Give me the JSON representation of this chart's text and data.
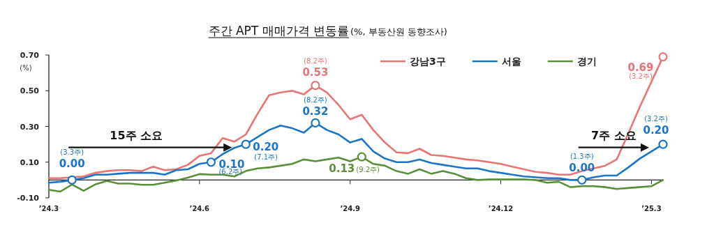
{
  "chart_data": {
    "type": "line",
    "title": "주간 APT 매매가격 변동률",
    "subtitle": "(%, 부동산원 동향조사)",
    "ylabel": "(%)",
    "categories": [
      "’24.3",
      null,
      null,
      null,
      null,
      null,
      null,
      null,
      null,
      null,
      null,
      null,
      null,
      "’24.6",
      null,
      null,
      null,
      null,
      null,
      null,
      null,
      null,
      null,
      null,
      null,
      null,
      "’24.9",
      null,
      null,
      null,
      null,
      null,
      null,
      null,
      null,
      null,
      null,
      null,
      null,
      "’24.12",
      null,
      null,
      null,
      null,
      null,
      null,
      null,
      null,
      null,
      null,
      null,
      null,
      "’25.3",
      null
    ],
    "ylim": [
      -0.1,
      0.7
    ],
    "yticks": [
      {
        "value": 0.7,
        "label": "0.70"
      },
      {
        "value": 0.5,
        "label": "0.50"
      },
      {
        "value": 0.3,
        "label": "0.30"
      },
      {
        "value": 0.1,
        "label": "0.10"
      },
      {
        "value": -0.1,
        "label": "-0.10"
      }
    ],
    "grid": false,
    "legend": "top right",
    "series": [
      {
        "name": "강남3구",
        "color": "#e87474",
        "values": [
          0.01,
          0.01,
          null,
          0.02,
          0.04,
          0.05,
          0.055,
          0.055,
          0.05,
          0.075,
          0.055,
          0.06,
          0.085,
          0.135,
          0.15,
          0.235,
          0.215,
          0.255,
          0.37,
          0.475,
          0.49,
          0.5,
          0.48,
          0.53,
          0.49,
          0.42,
          0.34,
          0.365,
          0.28,
          0.21,
          0.155,
          0.15,
          0.175,
          0.14,
          0.135,
          0.125,
          0.115,
          0.11,
          0.1,
          0.09,
          0.075,
          0.06,
          0.045,
          0.04,
          0.03,
          0.03,
          0.05,
          0.065,
          0.08,
          0.115,
          0.26,
          0.41,
          0.55,
          0.69
        ],
        "value_labels": [
          null,
          null,
          null,
          null,
          null,
          null,
          null,
          null,
          null,
          null,
          null,
          null,
          null,
          null,
          null,
          null,
          null,
          null,
          null,
          null,
          null,
          null,
          null,
          "0.53",
          null,
          null,
          null,
          null,
          null,
          null,
          null,
          null,
          null,
          null,
          null,
          null,
          null,
          null,
          null,
          null,
          null,
          null,
          null,
          null,
          null,
          null,
          null,
          null,
          null,
          null,
          null,
          null,
          null,
          "0.69"
        ]
      },
      {
        "name": "서울",
        "color": "#1a75c9",
        "values": [
          -0.015,
          -0.01,
          0.0,
          0.01,
          0.03,
          0.03,
          0.035,
          0.04,
          0.04,
          0.04,
          0.03,
          0.055,
          0.06,
          0.09,
          0.1,
          0.145,
          0.18,
          0.2,
          0.24,
          0.28,
          0.305,
          0.29,
          0.265,
          0.32,
          0.28,
          0.255,
          0.21,
          0.23,
          0.16,
          0.12,
          0.1,
          0.1,
          0.115,
          0.095,
          0.085,
          0.075,
          0.065,
          0.065,
          0.05,
          0.04,
          0.03,
          0.02,
          0.015,
          0.01,
          0.01,
          0.0,
          0.0,
          0.015,
          0.025,
          0.025,
          0.07,
          0.12,
          0.16,
          0.2
        ],
        "value_labels": [
          null,
          null,
          "0.00",
          null,
          null,
          null,
          null,
          null,
          null,
          null,
          null,
          null,
          null,
          null,
          "0.10",
          null,
          null,
          "0.20",
          null,
          null,
          null,
          null,
          null,
          "0.32",
          null,
          null,
          null,
          null,
          null,
          null,
          null,
          null,
          null,
          null,
          null,
          null,
          null,
          null,
          null,
          null,
          null,
          null,
          null,
          null,
          null,
          null,
          "0.00",
          null,
          null,
          null,
          null,
          null,
          null,
          "0.20"
        ]
      },
      {
        "name": "경기",
        "color": "#5b8e3a",
        "values": [
          -0.055,
          -0.065,
          -0.025,
          -0.06,
          -0.025,
          -0.005,
          -0.02,
          -0.02,
          -0.027,
          -0.027,
          -0.015,
          -0.003,
          0.013,
          0.033,
          0.03,
          0.03,
          0.02,
          0.05,
          0.065,
          0.07,
          0.08,
          0.09,
          0.115,
          0.105,
          0.115,
          0.125,
          0.105,
          0.13,
          0.09,
          0.08,
          0.05,
          0.035,
          0.06,
          0.035,
          0.05,
          0.035,
          0.01,
          0.0,
          0.003,
          0.003,
          0.003,
          0.003,
          0.0,
          -0.015,
          -0.01,
          -0.04,
          -0.035,
          -0.035,
          -0.04,
          -0.05,
          -0.045,
          -0.04,
          -0.035,
          0.0
        ],
        "value_labels": [
          null,
          null,
          null,
          null,
          null,
          null,
          null,
          null,
          null,
          null,
          null,
          null,
          null,
          null,
          null,
          null,
          null,
          null,
          null,
          null,
          null,
          null,
          null,
          null,
          null,
          null,
          null,
          "0.13",
          null,
          null,
          null,
          null,
          null,
          null,
          null,
          null,
          null,
          null,
          null,
          null,
          null,
          null,
          null,
          null,
          null,
          null,
          null,
          null,
          null,
          null,
          null,
          null,
          null,
          null
        ]
      }
    ],
    "annotations": [
      "(8.2주)",
      "(3.2주)",
      "(3.3주)",
      "(6.2주)",
      "(7.1주)",
      "(8.2주)",
      "(1.3주)",
      "(3.2주)",
      "(9.2주)",
      "15주 소요",
      "7주 소요"
    ]
  }
}
